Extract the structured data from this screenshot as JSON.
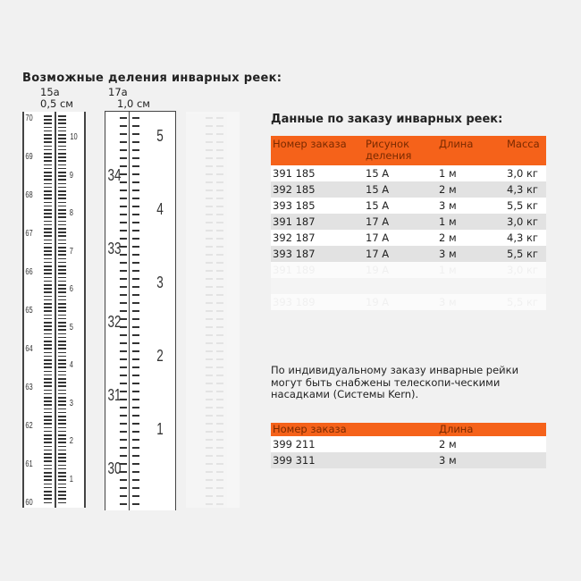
{
  "left": {
    "title": "Возможные деления инварных реек:",
    "rulers": [
      {
        "code": "15a",
        "step": "0,5 см",
        "left_labels": [
          "70",
          "69",
          "68",
          "67",
          "66",
          "65",
          "64",
          "63",
          "62",
          "61",
          "60"
        ],
        "right_labels": [
          "10",
          "9",
          "8",
          "7",
          "6",
          "5",
          "4",
          "3",
          "2",
          "1"
        ]
      },
      {
        "code": "17a",
        "step": "1,0 см",
        "left_labels": [
          "34",
          "33",
          "32",
          "31",
          "30"
        ],
        "right_labels": [
          "5",
          "4",
          "3",
          "2",
          "1"
        ]
      }
    ]
  },
  "right": {
    "title": "Данные по заказу инварных реек:",
    "table1": {
      "headers": [
        "Номер заказа",
        "Рисунок деления",
        "Длина",
        "Масса"
      ],
      "rows": [
        [
          "391 185",
          "15 А",
          "1 м",
          "3,0 кг"
        ],
        [
          "392 185",
          "15 А",
          "2 м",
          "4,3 кг"
        ],
        [
          "393 185",
          "15 А",
          "3 м",
          "5,5 кг"
        ],
        [
          "391 187",
          "17 А",
          "1 м",
          "3,0 кг"
        ],
        [
          "392 187",
          "17 А",
          "2 м",
          "4,3 кг"
        ],
        [
          "393 187",
          "17 А",
          "3 м",
          "5,5 кг"
        ]
      ],
      "faded_rows": [
        [
          "391 189",
          "19 А",
          "1 м",
          "3,0 кг"
        ],
        [
          "",
          "",
          "",
          ""
        ],
        [
          "393 189",
          "19 А",
          "3 м",
          "5,5 кг"
        ]
      ]
    },
    "note": "По индивидуальному заказу инварные рейки могут быть снабжены телескопи-ческими насадками (Системы Kern).",
    "table2": {
      "headers": [
        "Номер заказа",
        "Длина"
      ],
      "rows": [
        [
          "399 211",
          "2 м"
        ],
        [
          "399 311",
          "3 м"
        ]
      ]
    }
  },
  "colors": {
    "header_bg": "#f5621a",
    "header_text": "#7a2a00",
    "row_alt": "#e2e2e2"
  }
}
